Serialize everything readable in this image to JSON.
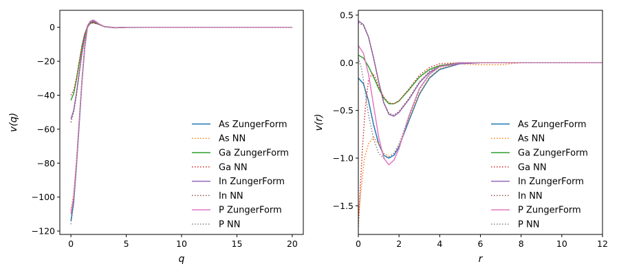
{
  "chart_data": [
    {
      "type": "line",
      "title": "",
      "xlabel": "q",
      "ylabel": "v(q)",
      "xlim": [
        -1,
        21
      ],
      "ylim": [
        -122,
        10
      ],
      "xticks": [
        0,
        5,
        10,
        15,
        20
      ],
      "yticks": [
        -120,
        -100,
        -80,
        -60,
        -40,
        -20,
        0
      ],
      "grid": false,
      "legend_position": "lower right",
      "series": [
        {
          "name": "As ZungerForm",
          "color": "#1f77b4",
          "style": "solid",
          "x": [
            0,
            0.25,
            0.5,
            0.75,
            1,
            1.25,
            1.5,
            1.75,
            2,
            2.25,
            2.5,
            3,
            3.5,
            4,
            5,
            7,
            10,
            15,
            20
          ],
          "y": [
            -114,
            -103,
            -82,
            -57,
            -32,
            -12,
            0,
            3,
            4,
            3.2,
            2,
            0.5,
            0,
            -0.2,
            -0.1,
            0,
            0,
            0,
            0
          ]
        },
        {
          "name": "As NN",
          "color": "#ff7f0e",
          "style": "dotted",
          "x": [
            0,
            0.25,
            0.5,
            0.75,
            1,
            1.25,
            1.5,
            1.75,
            2,
            2.5,
            3,
            4,
            5,
            10,
            15,
            20
          ],
          "y": [
            -108,
            -98,
            -79,
            -55,
            -31,
            -12,
            0,
            3,
            3.6,
            2,
            0.4,
            -0.2,
            0,
            0,
            0,
            0
          ]
        },
        {
          "name": "Ga ZungerForm",
          "color": "#2ca02c",
          "style": "solid",
          "x": [
            0,
            0.25,
            0.5,
            0.75,
            1,
            1.25,
            1.5,
            1.75,
            2,
            2.5,
            3,
            4,
            5,
            10,
            15,
            20
          ],
          "y": [
            -43,
            -39,
            -31,
            -21,
            -11,
            -4,
            0.5,
            2.3,
            2.8,
            1.8,
            0.5,
            -0.3,
            0,
            0,
            0,
            0
          ]
        },
        {
          "name": "Ga NN",
          "color": "#d62728",
          "style": "dotted",
          "x": [
            0,
            0.25,
            0.5,
            0.75,
            1,
            1.25,
            1.5,
            1.75,
            2,
            2.5,
            3,
            4,
            5,
            10,
            15,
            20
          ],
          "y": [
            -40,
            -37,
            -30,
            -20,
            -11,
            -4,
            0.5,
            2.2,
            2.6,
            1.8,
            0.5,
            -0.3,
            0,
            0,
            0,
            0
          ]
        },
        {
          "name": "In ZungerForm",
          "color": "#9467bd",
          "style": "solid",
          "x": [
            0,
            0.25,
            0.5,
            0.75,
            1,
            1.25,
            1.5,
            1.75,
            2,
            2.5,
            3,
            4,
            5,
            10,
            15,
            20
          ],
          "y": [
            -54,
            -49,
            -39,
            -27,
            -15,
            -6,
            0,
            2.8,
            3.4,
            2,
            0.4,
            -0.3,
            0,
            0,
            0,
            0
          ]
        },
        {
          "name": "In NN",
          "color": "#8c564b",
          "style": "dotted",
          "x": [
            0,
            0.25,
            0.5,
            0.75,
            1,
            1.25,
            1.5,
            1.75,
            2,
            2.5,
            3,
            4,
            5,
            10,
            15,
            20
          ],
          "y": [
            -56,
            -50,
            -40,
            -27,
            -15,
            -6,
            0,
            2.6,
            3.2,
            2,
            0.4,
            -0.3,
            0,
            0,
            0,
            0
          ]
        },
        {
          "name": "P ZungerForm",
          "color": "#e377c2",
          "style": "solid",
          "x": [
            0,
            0.25,
            0.5,
            0.75,
            1,
            1.25,
            1.5,
            1.75,
            2,
            2.25,
            2.5,
            3,
            3.5,
            4,
            5,
            10,
            15,
            20
          ],
          "y": [
            -110,
            -100,
            -80,
            -55,
            -31,
            -11,
            1,
            3.5,
            4.3,
            3.5,
            2.2,
            0.5,
            0,
            -0.2,
            0,
            0,
            0,
            0
          ]
        },
        {
          "name": "P NN",
          "color": "#7f7f7f",
          "style": "dotted",
          "x": [
            0,
            0.25,
            0.5,
            0.75,
            1,
            1.25,
            1.5,
            1.75,
            2,
            2.5,
            3,
            4,
            5,
            10,
            15,
            20
          ],
          "y": [
            -116,
            -104,
            -82,
            -56,
            -31,
            -11,
            1,
            3.3,
            4,
            2,
            0.4,
            -0.2,
            0,
            0,
            0,
            0
          ]
        }
      ]
    },
    {
      "type": "line",
      "title": "",
      "xlabel": "r",
      "ylabel": "v(r)",
      "xlim": [
        0,
        12
      ],
      "ylim": [
        -1.8,
        0.55
      ],
      "xticks": [
        0,
        2,
        4,
        6,
        8,
        10,
        12
      ],
      "yticks": [
        -1.5,
        -1.0,
        -0.5,
        0.0,
        0.5
      ],
      "ytick_labels": [
        "−1.5",
        "−1.0",
        "−0.5",
        "0.0",
        "0.5"
      ],
      "grid": false,
      "legend_position": "lower right",
      "series": [
        {
          "name": "As ZungerForm",
          "color": "#1f77b4",
          "style": "solid",
          "x": [
            0,
            0.25,
            0.5,
            0.75,
            1,
            1.25,
            1.5,
            1.75,
            2,
            2.5,
            3,
            3.5,
            4,
            5,
            6,
            8,
            10,
            12
          ],
          "y": [
            -0.16,
            -0.22,
            -0.4,
            -0.65,
            -0.85,
            -0.97,
            -1.0,
            -0.97,
            -0.88,
            -0.6,
            -0.33,
            -0.16,
            -0.07,
            -0.01,
            0,
            0,
            0,
            0
          ]
        },
        {
          "name": "As NN",
          "color": "#ff7f0e",
          "style": "dotted",
          "x": [
            0,
            0.15,
            0.3,
            0.5,
            0.75,
            1,
            1.25,
            1.5,
            1.75,
            2,
            2.5,
            3,
            3.5,
            4,
            5,
            6,
            7,
            8,
            10,
            12
          ],
          "y": [
            -1.62,
            -1.3,
            -1.0,
            -0.85,
            -0.78,
            -0.85,
            -0.95,
            -0.98,
            -0.95,
            -0.85,
            -0.58,
            -0.32,
            -0.15,
            -0.06,
            -0.01,
            -0.02,
            -0.02,
            0,
            0,
            0
          ]
        },
        {
          "name": "Ga ZungerForm",
          "color": "#2ca02c",
          "style": "solid",
          "x": [
            0,
            0.25,
            0.5,
            0.75,
            1,
            1.25,
            1.5,
            1.75,
            2,
            2.5,
            3,
            3.5,
            4,
            5,
            6,
            8,
            10,
            12
          ],
          "y": [
            0.08,
            0.05,
            -0.04,
            -0.15,
            -0.27,
            -0.37,
            -0.43,
            -0.43,
            -0.4,
            -0.28,
            -0.15,
            -0.07,
            -0.03,
            0,
            0,
            0,
            0,
            0
          ]
        },
        {
          "name": "Ga NN",
          "color": "#d62728",
          "style": "dotted",
          "x": [
            0,
            0.1,
            0.2,
            0.35,
            0.5,
            0.7,
            0.85,
            1,
            1.25,
            1.5,
            1.75,
            2,
            2.5,
            3,
            3.5,
            4,
            5,
            6,
            8,
            10,
            12
          ],
          "y": [
            -1.72,
            -1.3,
            -0.9,
            -0.45,
            -0.18,
            -0.11,
            -0.16,
            -0.25,
            -0.36,
            -0.42,
            -0.43,
            -0.4,
            -0.27,
            -0.13,
            -0.05,
            -0.01,
            0,
            0,
            0,
            0,
            0
          ]
        },
        {
          "name": "In ZungerForm",
          "color": "#9467bd",
          "style": "solid",
          "x": [
            0,
            0.25,
            0.5,
            0.75,
            1,
            1.25,
            1.5,
            1.75,
            2,
            2.5,
            3,
            3.5,
            4,
            5,
            6,
            8,
            10,
            12
          ],
          "y": [
            0.44,
            0.4,
            0.27,
            0.05,
            -0.2,
            -0.42,
            -0.54,
            -0.56,
            -0.52,
            -0.38,
            -0.21,
            -0.1,
            -0.04,
            -0.01,
            0,
            0,
            0,
            0
          ]
        },
        {
          "name": "In NN",
          "color": "#8c564b",
          "style": "dotted",
          "x": [
            0,
            0.25,
            0.5,
            0.75,
            1,
            1.25,
            1.5,
            1.75,
            2,
            2.5,
            3,
            3.5,
            4,
            5,
            6,
            8,
            10,
            12
          ],
          "y": [
            0.42,
            0.39,
            0.27,
            0.05,
            -0.2,
            -0.42,
            -0.53,
            -0.55,
            -0.51,
            -0.37,
            -0.2,
            -0.09,
            -0.03,
            0,
            0,
            0,
            0,
            0
          ]
        },
        {
          "name": "P ZungerForm",
          "color": "#e377c2",
          "style": "solid",
          "x": [
            0,
            0.25,
            0.5,
            0.75,
            1,
            1.25,
            1.5,
            1.75,
            2,
            2.5,
            3,
            3.5,
            4,
            5,
            6,
            8,
            10,
            12
          ],
          "y": [
            0.18,
            0.1,
            -0.12,
            -0.45,
            -0.78,
            -1.0,
            -1.07,
            -1.02,
            -0.9,
            -0.55,
            -0.27,
            -0.12,
            -0.04,
            0,
            0,
            0,
            0,
            0
          ]
        },
        {
          "name": "P NN",
          "color": "#7f7f7f",
          "style": "dotted",
          "x": [
            0,
            0.15,
            0.3,
            0.5,
            0.75,
            1,
            1.25,
            1.5,
            1.75,
            2,
            2.5,
            3,
            3.5,
            4,
            5,
            6,
            8,
            10,
            12
          ],
          "y": [
            0.05,
            -0.05,
            -0.25,
            -0.55,
            -0.8,
            -0.95,
            -1.0,
            -0.99,
            -0.95,
            -0.86,
            -0.55,
            -0.28,
            -0.12,
            -0.04,
            0,
            0,
            0,
            0,
            0
          ]
        }
      ]
    }
  ]
}
